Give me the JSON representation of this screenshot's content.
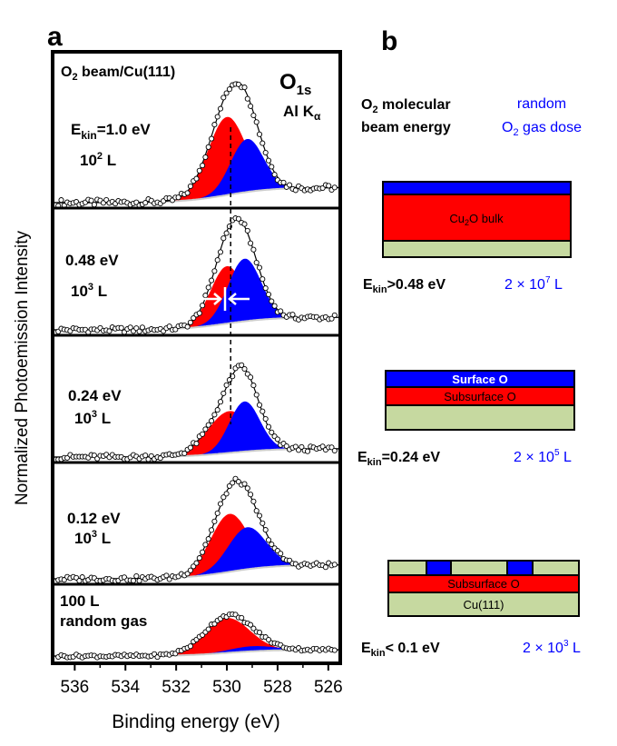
{
  "colors": {
    "red": "#ff0000",
    "blue": "#0000ff",
    "green": "#c6d9a0",
    "envelope": "#000000",
    "background_line": "#cccccc",
    "frame": "#000000",
    "arrow": "#ffffff",
    "text_blue": "#0000ff"
  },
  "panel_a": {
    "label": "a",
    "header": "O2 beam/Cu(111)",
    "header_main": "O",
    "header_sub": "2",
    "header_rest": " beam/Cu(111)",
    "peak_main": "O",
    "peak_sub": "1s",
    "source": "Al K",
    "source_sub": "α"
  },
  "panel_b": {
    "label": "b",
    "col1_line1_main": "O",
    "col1_line1_sub": "2",
    "col1_line1_rest": " molecular",
    "col1_line2": "beam energy",
    "col2_line1": "random",
    "col2_line2_main": "O",
    "col2_line2_sub": "2",
    "col2_line2_rest": " gas dose",
    "schematics": [
      {
        "layers": [
          "",
          "Cu2O bulk",
          ""
        ],
        "cu2o_main": "Cu",
        "cu2o_sub": "2",
        "cu2o_rest": "O bulk",
        "energy_prefix": "E",
        "energy_sub": "kin",
        "energy_rest": ">0.48 eV",
        "dose_base": "2 × 10",
        "dose_exp": "7",
        "dose_unit": " L"
      },
      {
        "surface": "Surface O",
        "subsurface": "Subsurface O",
        "energy_prefix": "E",
        "energy_sub": "kin",
        "energy_rest": "=0.24 eV",
        "dose_base": "2 × 10",
        "dose_exp": "5",
        "dose_unit": " L"
      },
      {
        "subsurface": "Subsurface O",
        "substrate": "Cu(111)",
        "energy_prefix": "E",
        "energy_sub": "kin",
        "energy_rest": "< 0.1 eV",
        "dose_base": "2 × 10",
        "dose_exp": "3",
        "dose_unit": " L"
      }
    ]
  },
  "chart_data": {
    "type": "line",
    "title": "O1s Al Kα",
    "xlabel": "Binding energy (eV)",
    "ylabel": "Normalized Photoemission Intensity",
    "xlim": [
      536.8,
      525.6
    ],
    "xticks": [
      536,
      534,
      532,
      530,
      528,
      526
    ],
    "dashed_line_eV": 529.85,
    "spectra": [
      {
        "label_energy_main": "E",
        "label_energy_sub": "kin",
        "label_energy_rest": "=1.0 eV",
        "label_dose_base": "10",
        "label_dose_exp": "2",
        "label_dose_unit": " L",
        "red_center_eV": 530.0,
        "red_amp": 0.62,
        "red_sigma": 0.75,
        "blue_center_eV": 529.2,
        "blue_amp": 0.42,
        "blue_sigma": 0.65,
        "background_step": 0.12
      },
      {
        "label_energy": "0.48 eV",
        "label_dose_base": "10",
        "label_dose_exp": "3",
        "label_dose_unit": " L",
        "red_center_eV": 530.0,
        "red_amp": 0.55,
        "red_sigma": 0.65,
        "blue_center_eV": 529.3,
        "blue_amp": 0.6,
        "blue_sigma": 0.65,
        "background_step": 0.12
      },
      {
        "label_energy": "0.24 eV",
        "label_dose_base": "10",
        "label_dose_exp": "3",
        "label_dose_unit": " L",
        "red_center_eV": 529.9,
        "red_amp": 0.4,
        "red_sigma": 0.85,
        "blue_center_eV": 529.3,
        "blue_amp": 0.48,
        "blue_sigma": 0.6,
        "background_step": 0.08
      },
      {
        "label_energy": "0.12 eV",
        "label_dose_base": "10",
        "label_dose_exp": "3",
        "label_dose_unit": " L",
        "red_center_eV": 529.9,
        "red_amp": 0.58,
        "red_sigma": 0.75,
        "blue_center_eV": 529.2,
        "blue_amp": 0.42,
        "blue_sigma": 0.75,
        "background_step": 0.14
      },
      {
        "label_energy": "100 L",
        "label_dose": "random gas",
        "red_center_eV": 530.0,
        "red_amp": 0.55,
        "red_sigma": 0.9,
        "blue_center_eV": 529.0,
        "blue_amp": 0.08,
        "blue_sigma": 0.9,
        "background_step": 0.1
      }
    ]
  }
}
